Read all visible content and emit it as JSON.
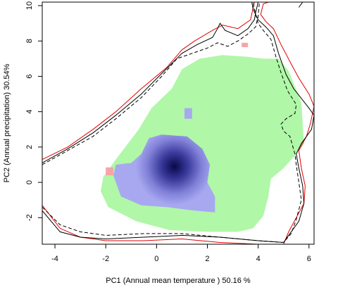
{
  "chart_data": {
    "type": "heatmap",
    "title": "",
    "xlabel": "PC1 (Annual mean temperature ) 50.16 %",
    "ylabel": "PC2 (Annual precipitation) 30.54%",
    "xlim": [
      -4.5,
      6.2
    ],
    "ylim": [
      -3.5,
      10.2
    ],
    "x_ticks": [
      -4,
      -2,
      0,
      2,
      4,
      6
    ],
    "y_ticks": [
      -2,
      0,
      2,
      4,
      6,
      8,
      10
    ],
    "grid": false,
    "legend": "none",
    "colors": {
      "niche_fill": "#b0f7a8",
      "density_fill": "#a8a8f0",
      "density_peak": "#08084a",
      "small_patch": "#f4a6a6",
      "contour_red": "#e00000",
      "contour_black": "#000000"
    },
    "density_peak": [
      0.7,
      0.9
    ],
    "regions": {
      "niche": [
        [
          -2.1,
          0.3
        ],
        [
          -2.2,
          -0.5
        ],
        [
          -1.9,
          -1.4
        ],
        [
          -0.8,
          -2.2
        ],
        [
          0.5,
          -2.7
        ],
        [
          2.0,
          -2.8
        ],
        [
          3.2,
          -2.8
        ],
        [
          3.8,
          -2.6
        ],
        [
          4.2,
          -1.9
        ],
        [
          4.4,
          -0.8
        ],
        [
          4.5,
          0.2
        ],
        [
          5.0,
          0.8
        ],
        [
          5.5,
          1.6
        ],
        [
          5.8,
          2.2
        ],
        [
          5.7,
          4.5
        ],
        [
          5.2,
          6.3
        ],
        [
          4.8,
          7.0
        ],
        [
          4.2,
          7.0
        ],
        [
          3.6,
          7.1
        ],
        [
          2.6,
          7.2
        ],
        [
          1.7,
          7.0
        ],
        [
          1.0,
          6.4
        ],
        [
          0.6,
          5.3
        ],
        [
          -0.2,
          4.2
        ],
        [
          -0.7,
          3.0
        ],
        [
          -1.6,
          1.3
        ]
      ],
      "density": [
        [
          -1.6,
          1.0
        ],
        [
          -1.7,
          0.4
        ],
        [
          -1.4,
          -0.8
        ],
        [
          -0.6,
          -1.3
        ],
        [
          0.4,
          -1.4
        ],
        [
          1.5,
          -1.6
        ],
        [
          2.3,
          -1.7
        ],
        [
          2.3,
          -0.8
        ],
        [
          2.0,
          0.0
        ],
        [
          2.1,
          1.0
        ],
        [
          1.8,
          1.9
        ],
        [
          1.2,
          2.6
        ],
        [
          0.2,
          2.7
        ],
        [
          -0.3,
          2.5
        ],
        [
          -0.6,
          1.6
        ],
        [
          -1.0,
          1.1
        ]
      ],
      "density_small_patch": [
        [
          1.1,
          4.2
        ],
        [
          1.4,
          4.2
        ],
        [
          1.4,
          3.6
        ],
        [
          1.1,
          3.6
        ]
      ],
      "pink_patches": [
        [
          [
            -2.0,
            0.4
          ],
          [
            -1.7,
            0.4
          ],
          [
            -1.7,
            0.85
          ],
          [
            -2.0,
            0.85
          ]
        ],
        [
          [
            3.35,
            7.65
          ],
          [
            3.6,
            7.65
          ],
          [
            3.6,
            7.9
          ],
          [
            3.35,
            7.9
          ]
        ]
      ]
    },
    "series": [
      {
        "color": "#e00000",
        "dash": false,
        "values": [
          [
            -4.5,
            -1.3
          ],
          [
            -3.8,
            -2.6
          ],
          [
            -3.0,
            -3.1
          ],
          [
            -2.0,
            -3.3
          ],
          [
            -0.5,
            -3.3
          ],
          [
            1.0,
            -3.2
          ],
          [
            2.5,
            -3.4
          ],
          [
            4.0,
            -3.5
          ],
          [
            5.0,
            -3.5
          ],
          [
            5.2,
            -2.8
          ],
          [
            5.5,
            -2.0
          ],
          [
            5.8,
            -1.2
          ],
          [
            5.85,
            -0.2
          ],
          [
            5.7,
            0.8
          ],
          [
            5.6,
            1.8
          ],
          [
            5.9,
            2.6
          ],
          [
            6.05,
            3.3
          ],
          [
            6.2,
            4.3
          ],
          [
            6.0,
            5.0
          ],
          [
            5.6,
            5.9
          ],
          [
            5.3,
            6.7
          ],
          [
            4.9,
            7.8
          ],
          [
            4.6,
            8.7
          ],
          [
            4.3,
            9.1
          ],
          [
            4.1,
            9.5
          ],
          [
            4.2,
            10.1
          ],
          [
            4.4,
            10.2
          ]
        ]
      },
      {
        "color": "#e00000",
        "dash": false,
        "values": [
          [
            -4.5,
            1.3
          ],
          [
            -3.5,
            2.0
          ],
          [
            -2.5,
            3.0
          ],
          [
            -1.6,
            4.0
          ],
          [
            -0.6,
            5.3
          ],
          [
            0.4,
            6.5
          ],
          [
            1.0,
            7.5
          ],
          [
            1.5,
            8.0
          ],
          [
            2.2,
            8.6
          ],
          [
            2.6,
            8.9
          ],
          [
            3.2,
            8.7
          ],
          [
            3.7,
            9.2
          ],
          [
            3.85,
            10.2
          ]
        ]
      },
      {
        "color": "#000000",
        "dash": false,
        "values": [
          [
            -4.5,
            -1.6
          ],
          [
            -3.8,
            -2.8
          ],
          [
            -3.0,
            -3.1
          ],
          [
            -2.0,
            -3.2
          ],
          [
            -0.5,
            -3.1
          ],
          [
            1.0,
            -3.0
          ],
          [
            2.5,
            -3.1
          ],
          [
            4.0,
            -3.3
          ],
          [
            5.0,
            -3.4
          ],
          [
            5.3,
            -2.8
          ],
          [
            5.6,
            -2.2
          ],
          [
            5.8,
            -1.2
          ],
          [
            5.75,
            -0.2
          ],
          [
            5.6,
            0.8
          ],
          [
            5.5,
            1.6
          ],
          [
            5.7,
            2.2
          ],
          [
            6.1,
            3.0
          ],
          [
            6.2,
            3.8
          ],
          [
            6.0,
            4.2
          ],
          [
            5.4,
            5.3
          ],
          [
            5.1,
            6.1
          ],
          [
            4.8,
            7.3
          ],
          [
            4.6,
            8.3
          ],
          [
            4.3,
            8.8
          ],
          [
            4.0,
            9.2
          ],
          [
            3.8,
            9.8
          ],
          [
            3.75,
            10.2
          ]
        ]
      },
      {
        "color": "#000000",
        "dash": false,
        "values": [
          [
            -4.5,
            1.1
          ],
          [
            -3.5,
            1.9
          ],
          [
            -2.5,
            2.8
          ],
          [
            -1.6,
            3.8
          ],
          [
            -0.6,
            5.0
          ],
          [
            0.3,
            6.3
          ],
          [
            1.0,
            7.3
          ],
          [
            1.6,
            7.8
          ],
          [
            2.2,
            8.2
          ],
          [
            2.4,
            8.7
          ],
          [
            2.5,
            9.0
          ],
          [
            2.7,
            8.6
          ],
          [
            3.2,
            8.3
          ],
          [
            3.6,
            8.7
          ],
          [
            3.85,
            9.2
          ],
          [
            3.9,
            9.6
          ],
          [
            4.0,
            10.2
          ]
        ]
      },
      {
        "color": "#000000",
        "dash": true,
        "values": [
          [
            -4.5,
            -1.4
          ],
          [
            -3.8,
            -2.4
          ],
          [
            -3.0,
            -2.8
          ],
          [
            -2.0,
            -3.0
          ],
          [
            -0.5,
            -2.9
          ],
          [
            1.0,
            -2.9
          ],
          [
            2.5,
            -3.1
          ],
          [
            4.0,
            -3.3
          ],
          [
            5.0,
            -3.4
          ],
          [
            5.3,
            -2.9
          ],
          [
            5.5,
            -2.1
          ],
          [
            5.7,
            -1.0
          ],
          [
            5.6,
            0.0
          ],
          [
            5.5,
            1.0
          ],
          [
            5.45,
            1.6
          ],
          [
            5.25,
            2.6
          ],
          [
            5.0,
            2.9
          ],
          [
            4.9,
            3.3
          ],
          [
            5.1,
            3.6
          ],
          [
            5.45,
            3.9
          ],
          [
            5.5,
            4.4
          ],
          [
            5.15,
            5.2
          ],
          [
            4.9,
            6.2
          ],
          [
            4.7,
            7.1
          ],
          [
            4.5,
            8.1
          ],
          [
            4.2,
            8.6
          ],
          [
            4.0,
            9.0
          ],
          [
            3.9,
            9.5
          ],
          [
            3.8,
            10.2
          ]
        ]
      },
      {
        "color": "#000000",
        "dash": true,
        "values": [
          [
            -4.5,
            1.0
          ],
          [
            -3.5,
            1.8
          ],
          [
            -2.5,
            2.6
          ],
          [
            -1.6,
            3.6
          ],
          [
            -0.6,
            4.8
          ],
          [
            0.2,
            6.0
          ],
          [
            0.8,
            7.0
          ],
          [
            1.4,
            7.3
          ],
          [
            2.0,
            7.6
          ],
          [
            2.4,
            7.9
          ],
          [
            2.8,
            7.7
          ],
          [
            3.2,
            8.0
          ],
          [
            3.6,
            8.4
          ],
          [
            3.9,
            8.8
          ],
          [
            4.0,
            9.4
          ],
          [
            4.05,
            10.2
          ]
        ]
      },
      {
        "color": "#000000",
        "dash": false,
        "values": [
          [
            5.6,
            9.9
          ],
          [
            5.75,
            10.2
          ]
        ]
      }
    ]
  }
}
